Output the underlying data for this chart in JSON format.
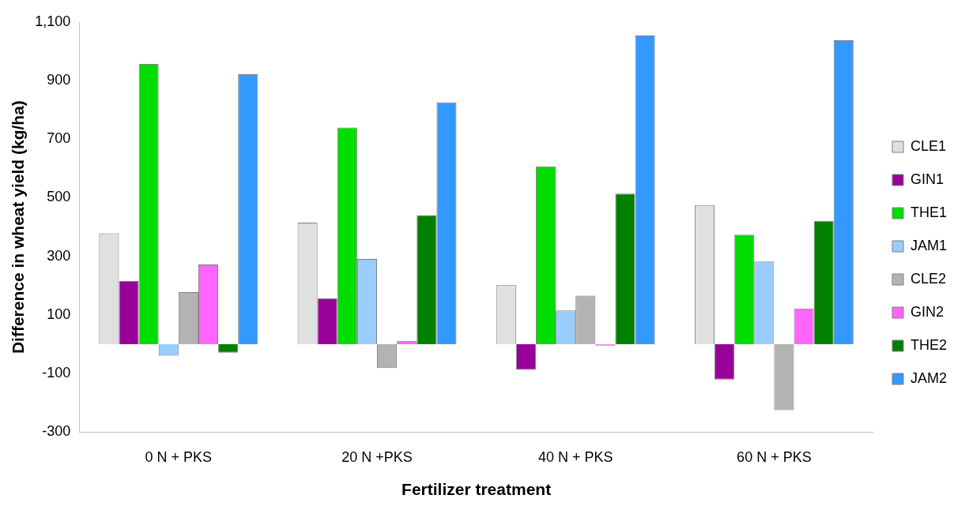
{
  "chart_data": {
    "type": "bar",
    "xlabel": "Fertilizer treatment",
    "ylabel": "Difference in wheat yield (kg/ha)",
    "categories": [
      "0 N + PKS",
      "20 N +PKS",
      "40 N + PKS",
      "60 N + PKS"
    ],
    "series": [
      {
        "name": "CLE1",
        "color": "#e0e0e0",
        "values": [
          379,
          415,
          203,
          475
        ]
      },
      {
        "name": "GIN1",
        "color": "#990099",
        "values": [
          216,
          157,
          -88,
          -121
        ]
      },
      {
        "name": "THE1",
        "color": "#00dd00",
        "values": [
          957,
          740,
          607,
          374
        ]
      },
      {
        "name": "JAM1",
        "color": "#99ccff",
        "values": [
          -39,
          291,
          115,
          282
        ]
      },
      {
        "name": "CLE2",
        "color": "#b3b3b3",
        "values": [
          178,
          -82,
          166,
          -225
        ]
      },
      {
        "name": "GIN2",
        "color": "#ff66ff",
        "values": [
          272,
          11,
          -5,
          122
        ]
      },
      {
        "name": "THE2",
        "color": "#008000",
        "values": [
          -29,
          441,
          514,
          421
        ]
      },
      {
        "name": "JAM2",
        "color": "#3399ff",
        "values": [
          922,
          826,
          1054,
          1038
        ]
      }
    ],
    "ylim": [
      -300,
      1100
    ],
    "yticks": [
      -300,
      -100,
      100,
      300,
      500,
      700,
      900,
      {
        "value": 1100,
        "label": "1,100"
      }
    ],
    "grid": false,
    "legend": "right"
  }
}
